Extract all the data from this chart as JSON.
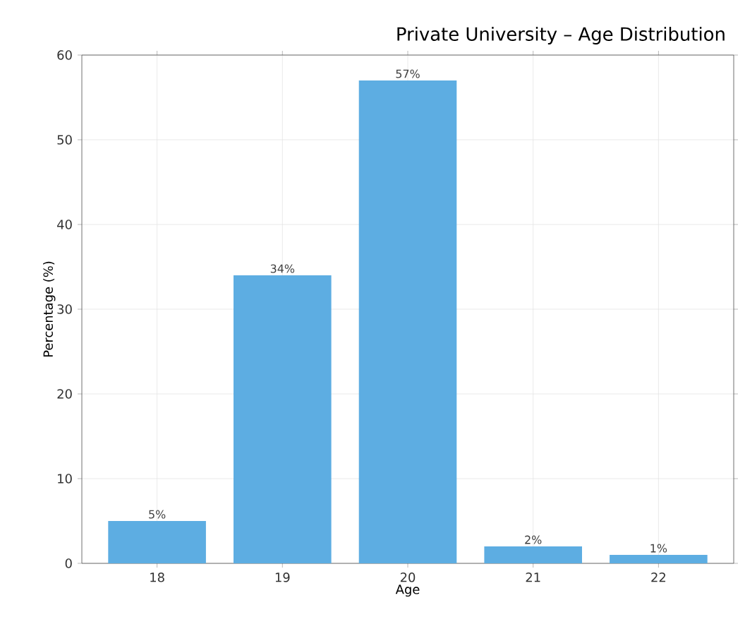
{
  "chart_data": {
    "type": "bar",
    "title": "Private University – Age Distribution",
    "xlabel": "Age",
    "ylabel": "Percentage (%)",
    "categories": [
      "18",
      "19",
      "20",
      "21",
      "22"
    ],
    "values": [
      5,
      34,
      57,
      2,
      1
    ],
    "value_labels": [
      "5%",
      "34%",
      "57%",
      "2%",
      "1%"
    ],
    "color": "#5dade2",
    "ylim": [
      0,
      60
    ],
    "yticks": [
      0,
      10,
      20,
      30,
      40,
      50,
      60
    ],
    "grid": true
  }
}
